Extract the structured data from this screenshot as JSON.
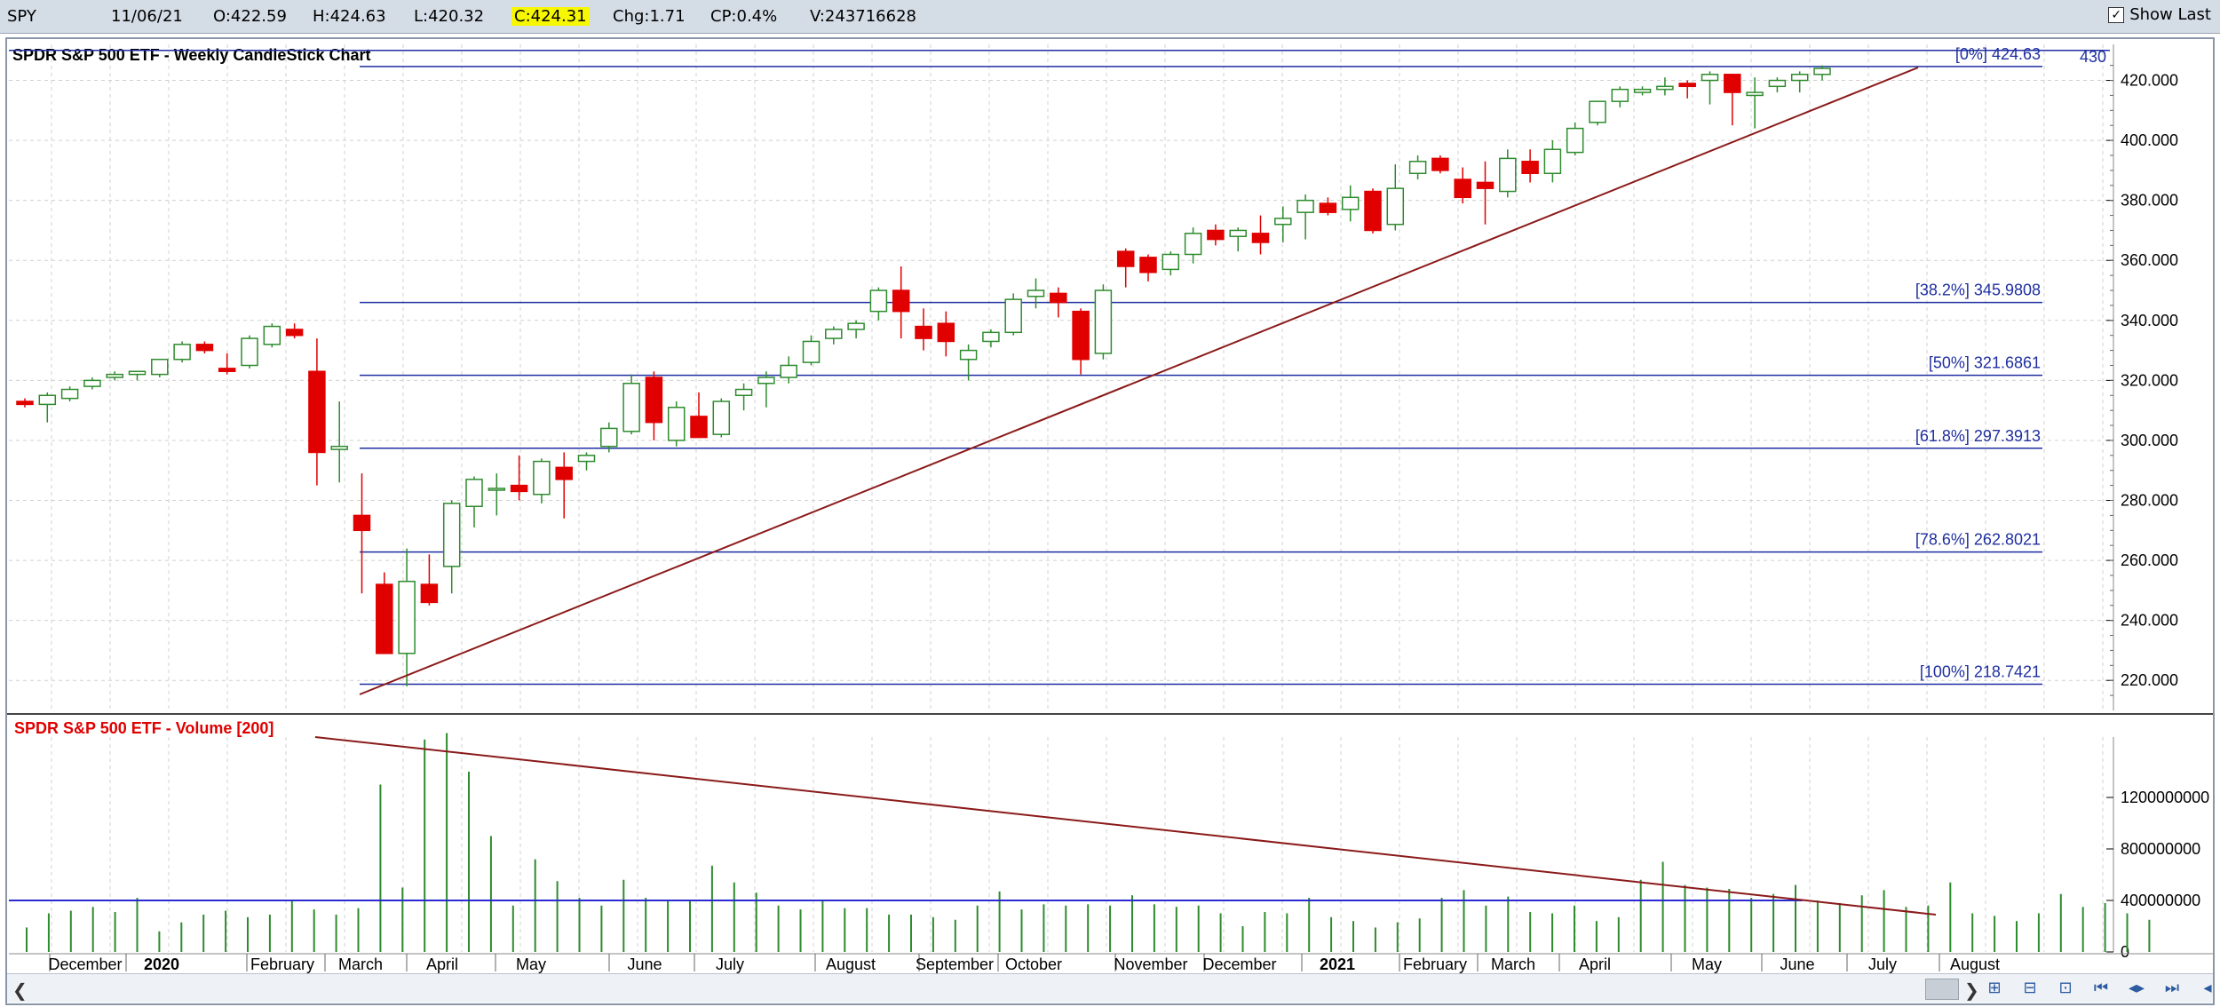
{
  "quote": {
    "symbol": "SPY",
    "date": "11/06/21",
    "open": "O:422.59",
    "high": "H:424.63",
    "low": "L:420.32",
    "close": "C:424.31",
    "change": "Chg:1.71",
    "change_pct": "CP:0.4%",
    "volume": "V:243716628"
  },
  "show_last": {
    "label": "Show Last",
    "checked": true
  },
  "price_panel": {
    "title": "SPDR S&P 500 ETF - Weekly CandleStick Chart",
    "corner_label": "430"
  },
  "volume_panel": {
    "title": "SPDR S&P 500 ETF - Volume [200]"
  },
  "colors": {
    "up": "#2e8b2e",
    "down": "#e00000",
    "fib": "#1f2fa0",
    "trend": "#8b1a1a",
    "title_red": "#e00000"
  },
  "chart_data": [
    {
      "type": "candlestick",
      "title": "SPDR S&P 500 ETF - Weekly CandleStick Chart",
      "ylim": [
        210,
        432
      ],
      "y_ticks": [
        "220.000",
        "240.000",
        "260.000",
        "280.000",
        "300.000",
        "320.000",
        "340.000",
        "360.000",
        "380.000",
        "400.000",
        "420.000"
      ],
      "x_labels": [
        "December",
        "2020",
        "February",
        "March",
        "April",
        "May",
        "June",
        "July",
        "August",
        "September",
        "October",
        "November",
        "December",
        "2021",
        "February",
        "March",
        "April",
        "May",
        "June",
        "July",
        "August"
      ],
      "candles": [
        {
          "o": 313,
          "h": 314,
          "l": 311,
          "c": 312
        },
        {
          "o": 312,
          "h": 316,
          "l": 306,
          "c": 315
        },
        {
          "o": 314,
          "h": 318,
          "l": 313,
          "c": 317
        },
        {
          "o": 318,
          "h": 321,
          "l": 317,
          "c": 320
        },
        {
          "o": 321,
          "h": 323,
          "l": 320,
          "c": 322
        },
        {
          "o": 322,
          "h": 323,
          "l": 320,
          "c": 323
        },
        {
          "o": 322,
          "h": 327,
          "l": 321,
          "c": 327
        },
        {
          "o": 327,
          "h": 333,
          "l": 326,
          "c": 332
        },
        {
          "o": 332,
          "h": 333,
          "l": 329,
          "c": 330
        },
        {
          "o": 324,
          "h": 329,
          "l": 322,
          "c": 323
        },
        {
          "o": 325,
          "h": 335,
          "l": 324,
          "c": 334
        },
        {
          "o": 332,
          "h": 339,
          "l": 331,
          "c": 338
        },
        {
          "o": 337,
          "h": 339,
          "l": 334,
          "c": 335
        },
        {
          "o": 323,
          "h": 334,
          "l": 285,
          "c": 296
        },
        {
          "o": 297,
          "h": 313,
          "l": 286,
          "c": 298
        },
        {
          "o": 275,
          "h": 289,
          "l": 249,
          "c": 270
        },
        {
          "o": 252,
          "h": 256,
          "l": 229,
          "c": 229
        },
        {
          "o": 229,
          "h": 264,
          "l": 218,
          "c": 253
        },
        {
          "o": 252,
          "h": 262,
          "l": 245,
          "c": 246
        },
        {
          "o": 258,
          "h": 280,
          "l": 249,
          "c": 279
        },
        {
          "o": 278,
          "h": 288,
          "l": 271,
          "c": 287
        },
        {
          "o": 284,
          "h": 289,
          "l": 275,
          "c": 284
        },
        {
          "o": 285,
          "h": 295,
          "l": 280,
          "c": 283
        },
        {
          "o": 282,
          "h": 294,
          "l": 279,
          "c": 293
        },
        {
          "o": 291,
          "h": 296,
          "l": 274,
          "c": 287
        },
        {
          "o": 293,
          "h": 296,
          "l": 290,
          "c": 295
        },
        {
          "o": 298,
          "h": 306,
          "l": 296,
          "c": 304
        },
        {
          "o": 303,
          "h": 322,
          "l": 302,
          "c": 319
        },
        {
          "o": 321,
          "h": 323,
          "l": 300,
          "c": 306
        },
        {
          "o": 300,
          "h": 313,
          "l": 298,
          "c": 311
        },
        {
          "o": 308,
          "h": 316,
          "l": 301,
          "c": 301
        },
        {
          "o": 302,
          "h": 314,
          "l": 301,
          "c": 313
        },
        {
          "o": 315,
          "h": 319,
          "l": 310,
          "c": 317
        },
        {
          "o": 319,
          "h": 323,
          "l": 311,
          "c": 321
        },
        {
          "o": 321,
          "h": 328,
          "l": 319,
          "c": 325
        },
        {
          "o": 326,
          "h": 335,
          "l": 325,
          "c": 333
        },
        {
          "o": 334,
          "h": 338,
          "l": 332,
          "c": 337
        },
        {
          "o": 337,
          "h": 340,
          "l": 334,
          "c": 339
        },
        {
          "o": 343,
          "h": 351,
          "l": 340,
          "c": 350
        },
        {
          "o": 350,
          "h": 358,
          "l": 334,
          "c": 343
        },
        {
          "o": 338,
          "h": 344,
          "l": 330,
          "c": 334
        },
        {
          "o": 339,
          "h": 343,
          "l": 328,
          "c": 333
        },
        {
          "o": 327,
          "h": 332,
          "l": 320,
          "c": 330
        },
        {
          "o": 333,
          "h": 337,
          "l": 331,
          "c": 336
        },
        {
          "o": 336,
          "h": 349,
          "l": 335,
          "c": 347
        },
        {
          "o": 348,
          "h": 354,
          "l": 344,
          "c": 350
        },
        {
          "o": 349,
          "h": 351,
          "l": 341,
          "c": 346
        },
        {
          "o": 343,
          "h": 344,
          "l": 322,
          "c": 327
        },
        {
          "o": 329,
          "h": 352,
          "l": 327,
          "c": 350
        },
        {
          "o": 363,
          "h": 364,
          "l": 351,
          "c": 358
        },
        {
          "o": 361,
          "h": 362,
          "l": 353,
          "c": 356
        },
        {
          "o": 357,
          "h": 363,
          "l": 355,
          "c": 362
        },
        {
          "o": 362,
          "h": 371,
          "l": 359,
          "c": 369
        },
        {
          "o": 370,
          "h": 372,
          "l": 365,
          "c": 367
        },
        {
          "o": 368,
          "h": 371,
          "l": 363,
          "c": 370
        },
        {
          "o": 369,
          "h": 375,
          "l": 362,
          "c": 366
        },
        {
          "o": 372,
          "h": 378,
          "l": 366,
          "c": 374
        },
        {
          "o": 376,
          "h": 382,
          "l": 367,
          "c": 380
        },
        {
          "o": 379,
          "h": 381,
          "l": 375,
          "c": 376
        },
        {
          "o": 377,
          "h": 385,
          "l": 373,
          "c": 381
        },
        {
          "o": 383,
          "h": 384,
          "l": 369,
          "c": 370
        },
        {
          "o": 372,
          "h": 392,
          "l": 370,
          "c": 384
        },
        {
          "o": 389,
          "h": 395,
          "l": 387,
          "c": 393
        },
        {
          "o": 394,
          "h": 395,
          "l": 389,
          "c": 390
        },
        {
          "o": 387,
          "h": 391,
          "l": 379,
          "c": 381
        },
        {
          "o": 386,
          "h": 393,
          "l": 372,
          "c": 384
        },
        {
          "o": 383,
          "h": 397,
          "l": 381,
          "c": 394
        },
        {
          "o": 393,
          "h": 397,
          "l": 386,
          "c": 389
        },
        {
          "o": 389,
          "h": 400,
          "l": 386,
          "c": 397
        },
        {
          "o": 396,
          "h": 406,
          "l": 395,
          "c": 404
        },
        {
          "o": 406,
          "h": 412,
          "l": 405,
          "c": 413
        },
        {
          "o": 413,
          "h": 418,
          "l": 411,
          "c": 417
        },
        {
          "o": 416,
          "h": 418,
          "l": 415,
          "c": 417
        },
        {
          "o": 417,
          "h": 421,
          "l": 415,
          "c": 418
        },
        {
          "o": 419,
          "h": 420,
          "l": 414,
          "c": 418
        },
        {
          "o": 420,
          "h": 423,
          "l": 412,
          "c": 422
        },
        {
          "o": 422,
          "h": 422,
          "l": 405,
          "c": 416
        },
        {
          "o": 415,
          "h": 421,
          "l": 404,
          "c": 416
        },
        {
          "o": 418,
          "h": 421,
          "l": 416,
          "c": 420
        },
        {
          "o": 420,
          "h": 423,
          "l": 416,
          "c": 422
        },
        {
          "o": 422,
          "h": 425,
          "l": 420,
          "c": 424
        }
      ],
      "fib_levels": [
        {
          "label": "[0%] 424.63",
          "value": 424.63
        },
        {
          "label": "[38.2%] 345.9808",
          "value": 345.98
        },
        {
          "label": "[50%] 321.6861",
          "value": 321.69
        },
        {
          "label": "[61.8%] 297.3913",
          "value": 297.39
        },
        {
          "label": "[78.6%] 262.8021",
          "value": 262.8
        },
        {
          "label": "[100%] 218.7421",
          "value": 218.74
        }
      ],
      "top_line_value": 430
    },
    {
      "type": "bar",
      "title": "SPDR S&P 500 ETF - Volume [200]",
      "ylim": [
        0,
        1600000000
      ],
      "y_ticks": [
        "0",
        "400000000",
        "800000000",
        "1200000000"
      ],
      "moving_average": 400000000,
      "volumes": [
        190,
        300,
        320,
        350,
        310,
        420,
        160,
        230,
        290,
        320,
        270,
        290,
        400,
        330,
        290,
        340,
        1300,
        500,
        1650,
        1700,
        1400,
        900,
        360,
        720,
        550,
        420,
        360,
        560,
        420,
        400,
        400,
        670,
        540,
        460,
        360,
        330,
        400,
        340,
        340,
        290,
        290,
        270,
        250,
        360,
        470,
        330,
        370,
        360,
        370,
        360,
        440,
        370,
        350,
        360,
        300,
        200,
        310,
        300,
        420,
        270,
        240,
        190,
        230,
        260,
        420,
        480,
        360,
        430,
        310,
        300,
        360,
        240,
        270,
        560,
        700,
        520,
        500,
        490,
        420,
        450,
        520,
        400,
        380,
        440,
        480,
        350,
        360,
        540,
        300,
        280,
        240,
        300,
        450,
        350,
        380,
        300,
        250
      ]
    }
  ]
}
